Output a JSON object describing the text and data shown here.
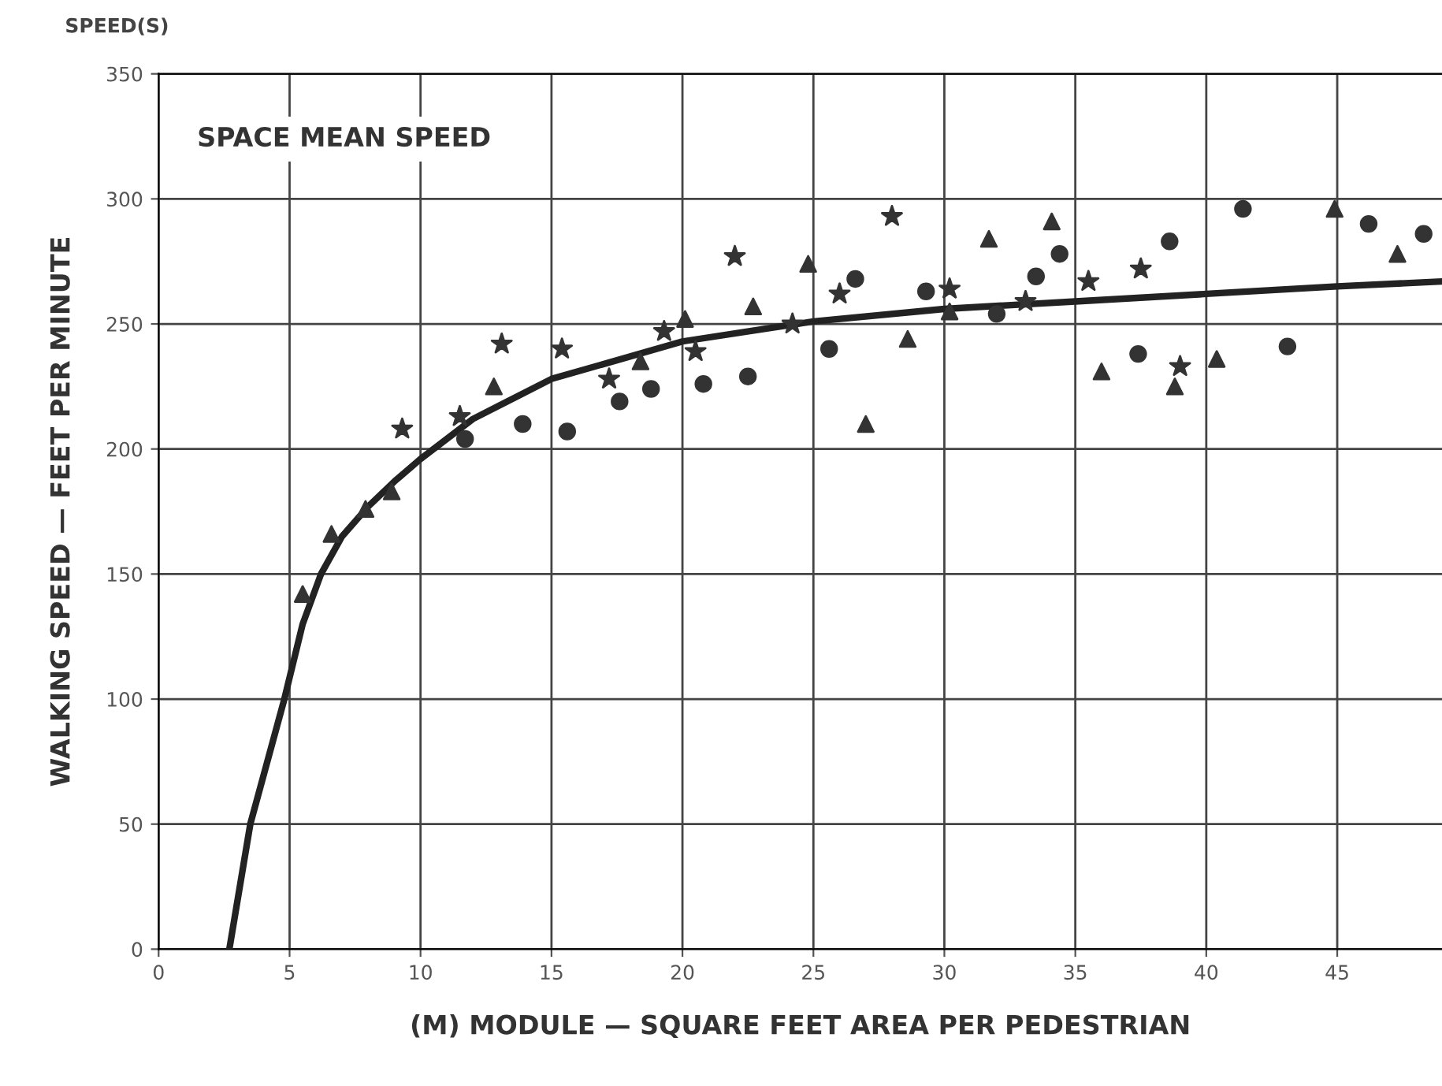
{
  "chart_data": {
    "type": "scatter",
    "title": "SPACE MEAN SPEED",
    "xlabel": "(M) MODULE — SQUARE FEET AREA PER PEDESTRIAN",
    "ylabel": "WALKING SPEED — FEET PER MINUTE",
    "annotations": [
      "SPEED(S)"
    ],
    "xlim": [
      0,
      49
    ],
    "ylim": [
      0,
      350
    ],
    "xticks": [
      0,
      5,
      10,
      15,
      20,
      25,
      30,
      35,
      40,
      45
    ],
    "yticks": [
      0,
      50,
      100,
      150,
      200,
      250,
      300,
      350
    ],
    "grid": true,
    "series": [
      {
        "type": "line",
        "marker": "none",
        "line_style": "solid",
        "color": "#222222",
        "x": [
          2.7,
          3.5,
          4.8,
          5.5,
          6.2,
          7,
          8,
          9,
          10,
          12,
          15,
          20,
          25,
          30,
          35,
          40,
          45,
          49
        ],
        "values": [
          0,
          50,
          100,
          130,
          150,
          165,
          177,
          187,
          196,
          212,
          228,
          243,
          251,
          256,
          259,
          262,
          265,
          267
        ]
      },
      {
        "marker": "triangle",
        "color": "#333333",
        "x": [
          5.5,
          6.6,
          7.9,
          8.9,
          12.8,
          18.4,
          20.1,
          22.7,
          24.8,
          27.0,
          28.6,
          30.2,
          31.7,
          34.1,
          36.0,
          38.8,
          40.4,
          44.9,
          47.3
        ],
        "values": [
          142,
          166,
          176,
          183,
          225,
          235,
          252,
          257,
          274,
          210,
          244,
          255,
          284,
          291,
          231,
          225,
          236,
          296,
          278
        ]
      },
      {
        "marker": "circle",
        "color": "#333333",
        "x": [
          11.7,
          13.9,
          15.6,
          17.6,
          18.8,
          20.8,
          22.5,
          25.6,
          26.6,
          29.3,
          32.0,
          33.5,
          34.4,
          37.4,
          38.6,
          41.4,
          43.1,
          46.2,
          48.3
        ],
        "values": [
          204,
          210,
          207,
          219,
          224,
          226,
          229,
          240,
          268,
          263,
          254,
          269,
          278,
          238,
          283,
          296,
          241,
          290,
          286
        ]
      },
      {
        "marker": "star",
        "color": "#333333",
        "x": [
          9.3,
          11.5,
          13.1,
          15.4,
          17.2,
          19.3,
          20.5,
          22.0,
          24.2,
          26.0,
          28.0,
          30.2,
          33.1,
          35.5,
          37.5,
          39.0
        ],
        "values": [
          208,
          213,
          242,
          240,
          228,
          247,
          239,
          277,
          250,
          262,
          293,
          264,
          259,
          267,
          272,
          233
        ]
      }
    ]
  }
}
